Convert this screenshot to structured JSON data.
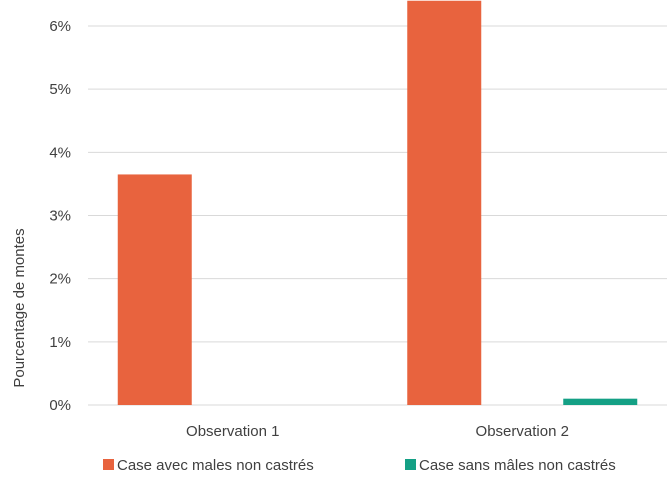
{
  "chart_data": {
    "type": "bar",
    "title": "",
    "xlabel": "",
    "ylabel": "Pourcentage de montes",
    "categories": [
      "Observation 1",
      "Observation 2"
    ],
    "series": [
      {
        "name": "Case avec males non  castrés",
        "color": "#E8633E",
        "values": [
          3.65,
          6.4
        ]
      },
      {
        "name": "Case sans mâles non  castrés",
        "color": "#14A085",
        "values": [
          0,
          0.1
        ]
      }
    ],
    "ylim": [
      0,
      6
    ],
    "yticks": [
      0,
      1,
      2,
      3,
      4,
      5,
      6
    ],
    "ytick_labels": [
      "0%",
      "1%",
      "2%",
      "3%",
      "4%",
      "5%",
      "6%"
    ],
    "grid": true,
    "legend": "bottom"
  }
}
